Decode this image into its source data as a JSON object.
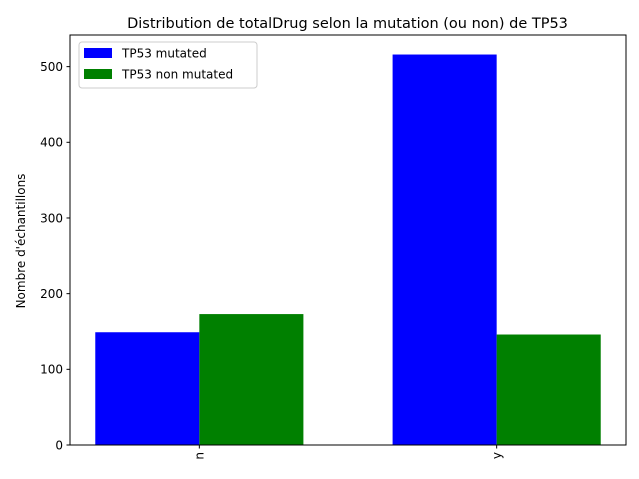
{
  "chart_data": {
    "type": "bar",
    "title": "Distribution de totalDrug selon la mutation (ou non) de TP53",
    "xlabel": "",
    "ylabel": "Nombre d'échantillons",
    "categories": [
      "n",
      "y"
    ],
    "series": [
      {
        "name": "TP53 mutated",
        "color": "#0000ff",
        "values": [
          149,
          516
        ]
      },
      {
        "name": "TP53 non mutated",
        "color": "#008000",
        "values": [
          173,
          146
        ]
      }
    ],
    "ylim": [
      0,
      541.8
    ],
    "yticks": [
      0,
      100,
      200,
      300,
      400,
      500
    ],
    "grid": false,
    "legend_position": "top-left",
    "x_tick_rotation": 90
  }
}
